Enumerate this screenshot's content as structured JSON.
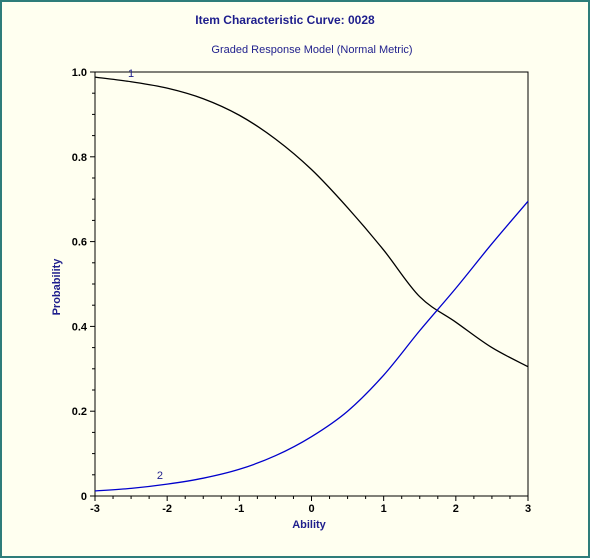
{
  "colors": {
    "frame_border": "#2E7D7A",
    "background": "#FFFFF0",
    "text_blue": "#1E1E8C",
    "curve_1": "#000000",
    "curve_2": "#0000CC"
  },
  "chart_data": {
    "type": "line",
    "title": "Item Characteristic Curve: 0028",
    "subtitle": "Graded Response Model (Normal Metric)",
    "xlabel": "Ability",
    "ylabel": "Probability",
    "xlim": [
      -3,
      3
    ],
    "ylim": [
      0,
      1
    ],
    "xticks": [
      "-3",
      "-2",
      "-1",
      "0",
      "1",
      "2",
      "3"
    ],
    "yticks": [
      "0",
      "0.2",
      "0.4",
      "0.6",
      "0.8",
      "1.0"
    ],
    "grid": false,
    "series": [
      {
        "name": "1",
        "x": [
          -3,
          -2.5,
          -2,
          -1.5,
          -1,
          -0.5,
          0,
          0.5,
          1,
          1.5,
          2,
          2.5,
          3
        ],
        "values": [
          0.988,
          0.977,
          0.962,
          0.937,
          0.898,
          0.842,
          0.77,
          0.68,
          0.58,
          0.47,
          0.41,
          0.35,
          0.305
        ]
      },
      {
        "name": "2",
        "x": [
          -3,
          -2.5,
          -2,
          -1.5,
          -1,
          -0.5,
          0,
          0.5,
          1,
          1.5,
          2,
          2.5,
          3
        ],
        "values": [
          0.012,
          0.018,
          0.028,
          0.042,
          0.063,
          0.095,
          0.14,
          0.2,
          0.285,
          0.39,
          0.49,
          0.595,
          0.695
        ]
      }
    ]
  }
}
